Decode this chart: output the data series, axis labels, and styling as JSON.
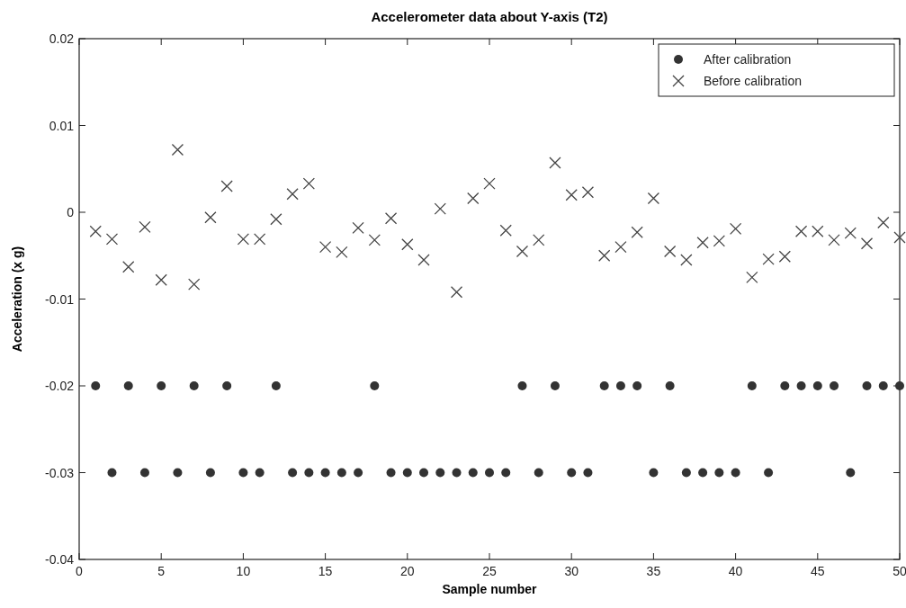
{
  "chart_data": {
    "type": "scatter",
    "title": "Accelerometer data about Y-axis (T2)",
    "xlabel": "Sample number",
    "ylabel": "Acceleration (x g)",
    "x": [
      1,
      2,
      3,
      4,
      5,
      6,
      7,
      8,
      9,
      10,
      11,
      12,
      13,
      14,
      15,
      16,
      17,
      18,
      19,
      20,
      21,
      22,
      23,
      24,
      25,
      26,
      27,
      28,
      29,
      30,
      31,
      32,
      33,
      34,
      35,
      36,
      37,
      38,
      39,
      40,
      41,
      42,
      43,
      44,
      45,
      46,
      47,
      48,
      49,
      50
    ],
    "series": [
      {
        "name": "After calibration",
        "color": "#333333",
        "marker": "circle",
        "values": [
          -0.02,
          -0.03,
          -0.02,
          -0.03,
          -0.02,
          -0.03,
          -0.02,
          -0.03,
          -0.02,
          -0.03,
          -0.03,
          -0.02,
          -0.03,
          -0.03,
          -0.03,
          -0.03,
          -0.03,
          -0.02,
          -0.03,
          -0.03,
          -0.03,
          -0.03,
          -0.03,
          -0.03,
          -0.03,
          -0.03,
          -0.02,
          -0.03,
          -0.02,
          -0.03,
          -0.03,
          -0.02,
          -0.02,
          -0.02,
          -0.03,
          -0.02,
          -0.03,
          -0.03,
          -0.03,
          -0.03,
          -0.02,
          -0.03,
          -0.02,
          -0.02,
          -0.02,
          -0.02,
          -0.03,
          -0.02,
          -0.02,
          -0.02
        ]
      },
      {
        "name": "Before calibration",
        "color": "#444444",
        "marker": "cross",
        "values": [
          -0.0022,
          -0.0031,
          -0.0063,
          -0.0017,
          -0.0078,
          0.0072,
          -0.0083,
          -0.0006,
          0.003,
          -0.0031,
          -0.0031,
          -0.0008,
          0.0021,
          0.0033,
          -0.004,
          -0.0046,
          -0.0018,
          -0.0032,
          -0.0007,
          -0.0037,
          -0.0055,
          0.0004,
          -0.0092,
          0.0016,
          0.0033,
          -0.0021,
          -0.0045,
          -0.0032,
          0.0057,
          0.002,
          0.0023,
          -0.005,
          -0.004,
          -0.0023,
          0.0016,
          -0.0045,
          -0.0055,
          -0.0035,
          -0.0033,
          -0.0019,
          -0.0075,
          -0.0054,
          -0.0051,
          -0.0022,
          -0.0022,
          -0.0032,
          -0.0024,
          -0.0036,
          -0.0012,
          -0.0029
        ]
      }
    ],
    "xlim": [
      0,
      50
    ],
    "xticks": [
      0,
      5,
      10,
      15,
      20,
      25,
      30,
      35,
      40,
      45,
      50
    ],
    "ylim": [
      -0.04,
      0.02
    ],
    "yticks": [
      -0.04,
      -0.03,
      -0.02,
      -0.01,
      0,
      0.01,
      0.02
    ],
    "legend": "top right",
    "grid": false
  }
}
